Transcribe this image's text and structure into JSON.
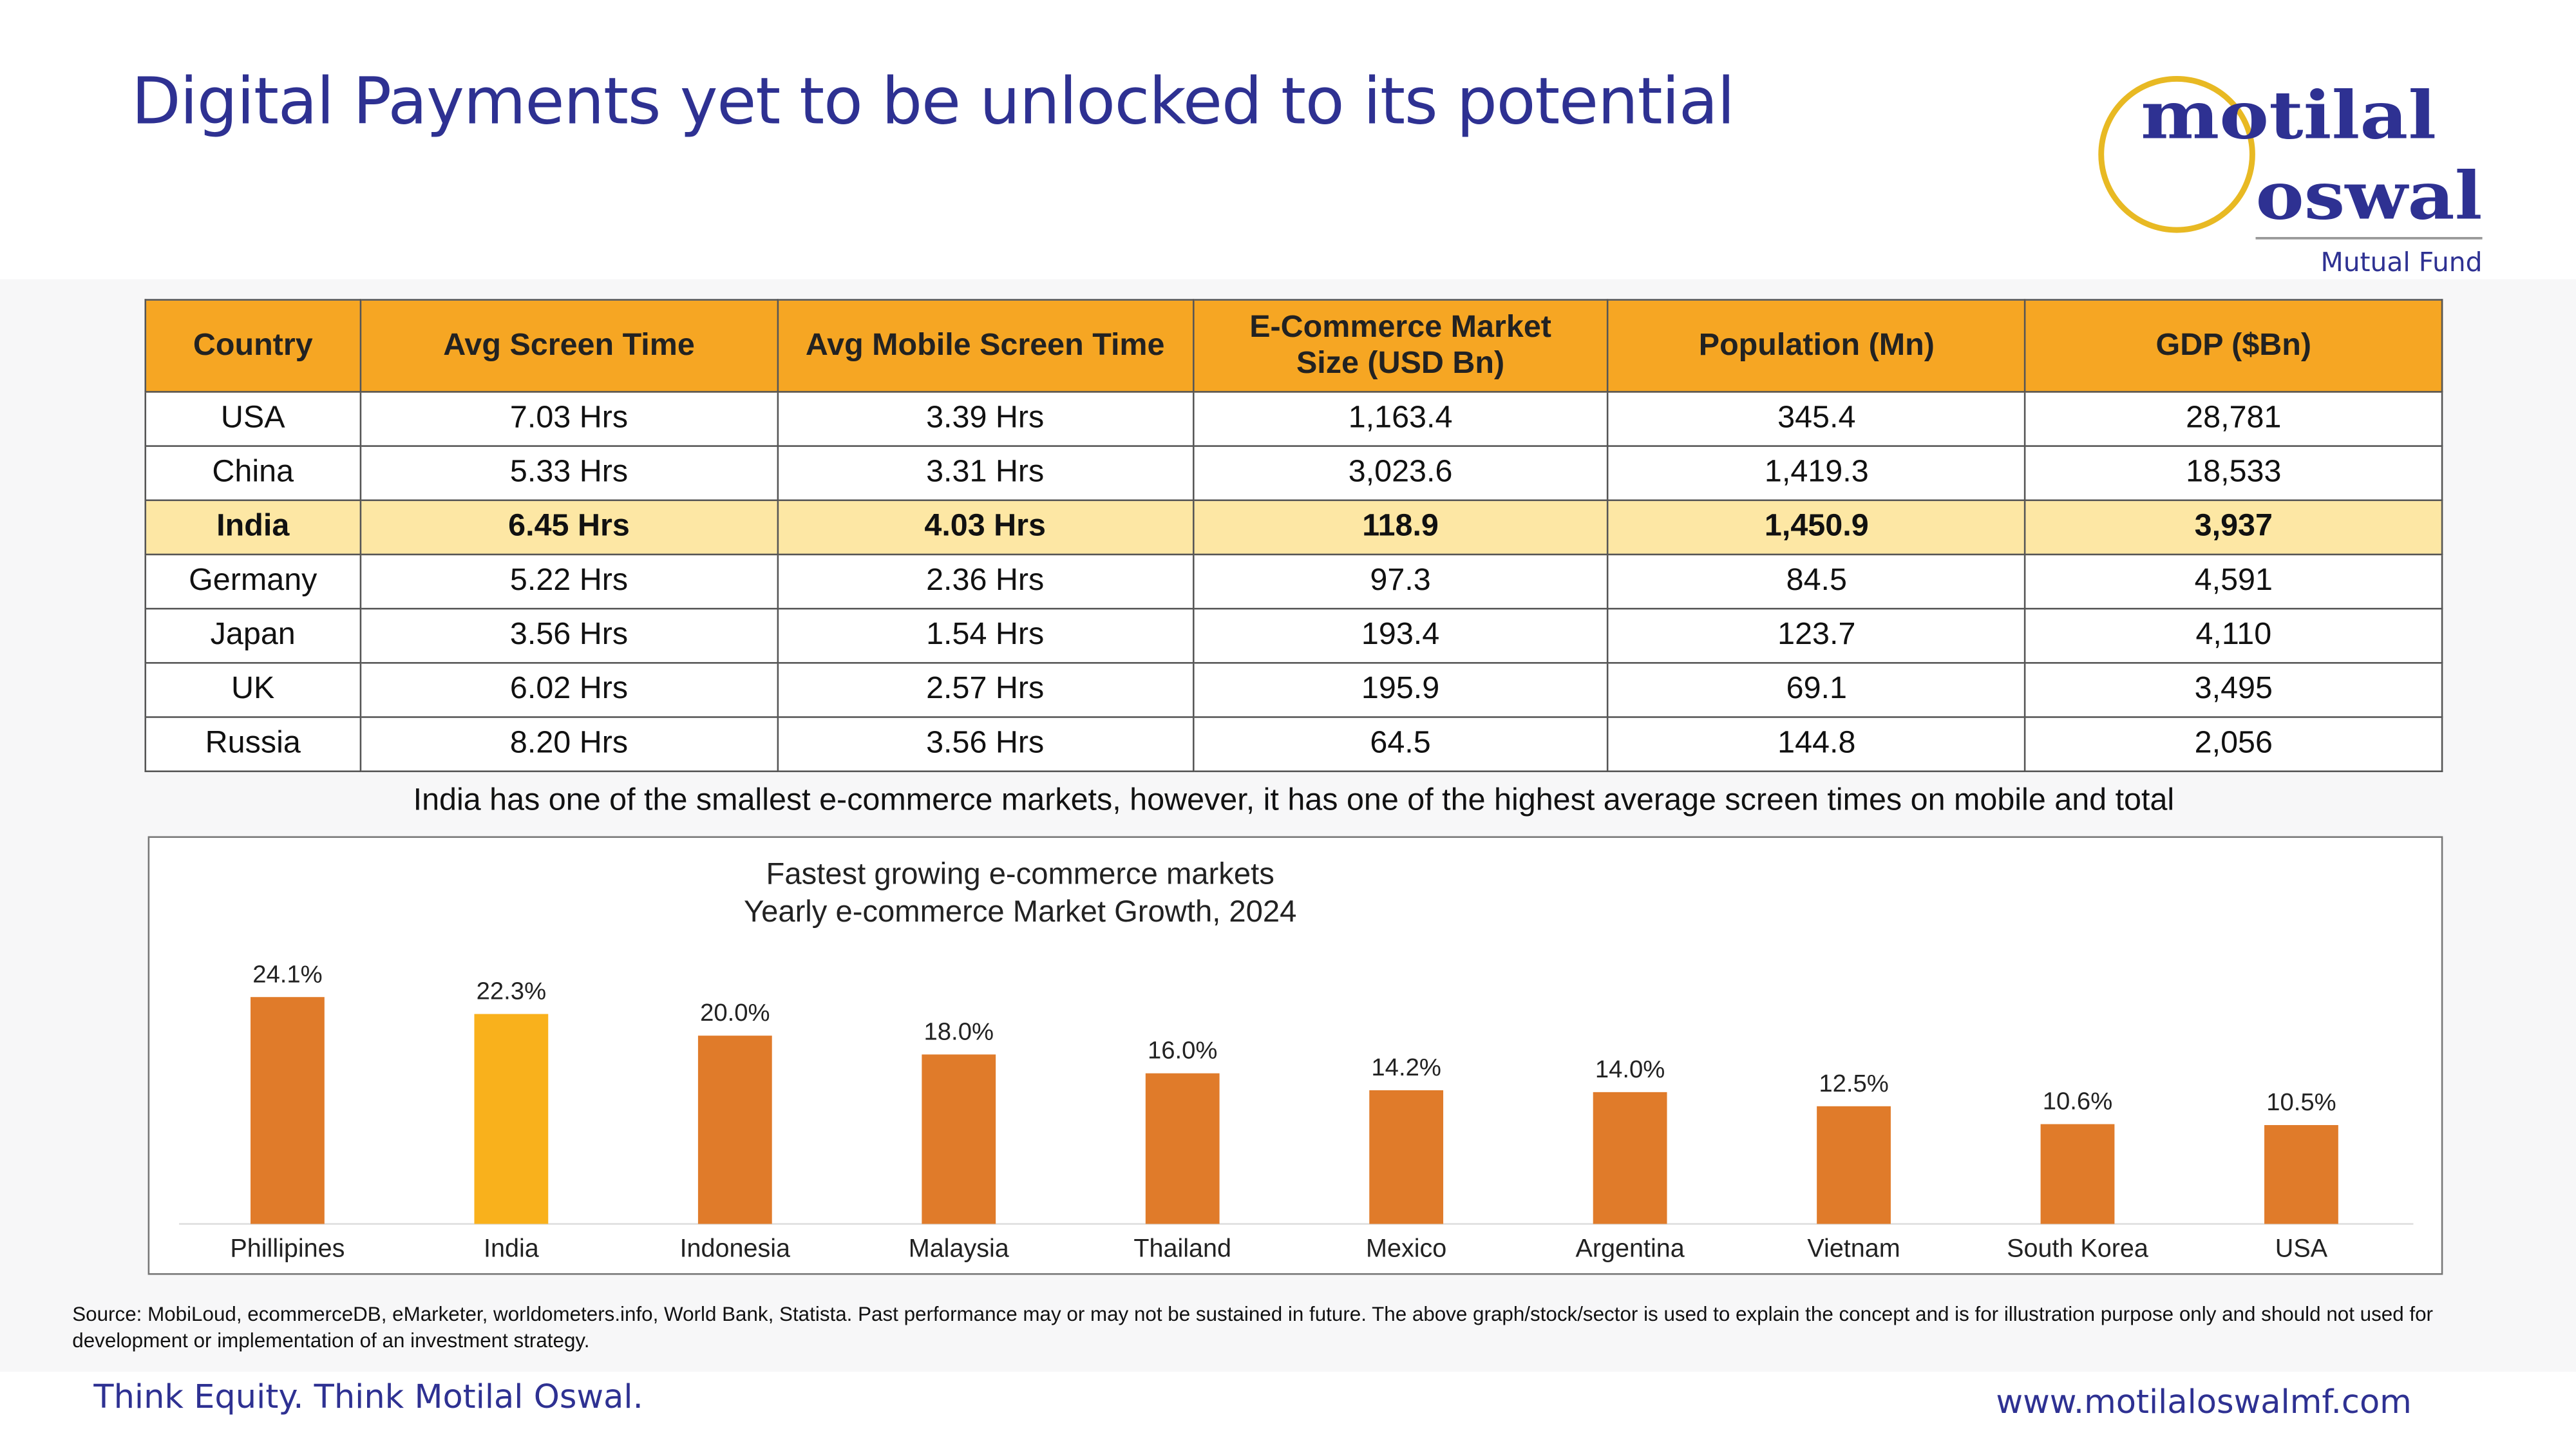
{
  "header": {
    "title": "Digital Payments yet to be unlocked to its potential"
  },
  "logo": {
    "line1": "motilal",
    "line2": "oswal",
    "sub": "Mutual Fund"
  },
  "table": {
    "columns": [
      "Country",
      "Avg Screen Time",
      "Avg Mobile Screen Time",
      "E-Commerce Market Size (USD Bn)",
      "Population (Mn)",
      "GDP ($Bn)"
    ],
    "rows": [
      [
        "USA",
        "7.03 Hrs",
        "3.39 Hrs",
        "1,163.4",
        "345.4",
        "28,781"
      ],
      [
        "China",
        "5.33 Hrs",
        "3.31 Hrs",
        "3,023.6",
        "1,419.3",
        "18,533"
      ],
      [
        "India",
        "6.45 Hrs",
        "4.03 Hrs",
        "118.9",
        "1,450.9",
        "3,937"
      ],
      [
        "Germany",
        "5.22 Hrs",
        "2.36 Hrs",
        "97.3",
        "84.5",
        "4,591"
      ],
      [
        "Japan",
        "3.56 Hrs",
        "1.54 Hrs",
        "193.4",
        "123.7",
        "4,110"
      ],
      [
        "UK",
        "6.02 Hrs",
        "2.57 Hrs",
        "195.9",
        "69.1",
        "3,495"
      ],
      [
        "Russia",
        "8.20 Hrs",
        "3.56 Hrs",
        "64.5",
        "144.8",
        "2,056"
      ]
    ],
    "highlight_row": "India"
  },
  "caption": "India has one of the smallest e-commerce markets, however, it has one of the highest average screen times on mobile and total",
  "chart_data": {
    "type": "bar",
    "title": "Fastest growing e-commerce markets",
    "subtitle": "Yearly e-commerce Market Growth, 2024",
    "categories": [
      "Phillipines",
      "India",
      "Indonesia",
      "Malaysia",
      "Thailand",
      "Mexico",
      "Argentina",
      "Vietnam",
      "South Korea",
      "USA"
    ],
    "values": [
      24.1,
      22.3,
      20.0,
      18.0,
      16.0,
      14.2,
      14.0,
      12.5,
      10.6,
      10.5
    ],
    "labels": [
      "24.1%",
      "22.3%",
      "20.0%",
      "18.0%",
      "16.0%",
      "14.2%",
      "14.0%",
      "12.5%",
      "10.6%",
      "10.5%"
    ],
    "highlight": "India",
    "ylim": [
      0,
      25
    ],
    "colors": {
      "default": "#e07b2a",
      "highlight": "#f9b11c"
    }
  },
  "source": "Source: MobiLoud, ecommerceDB, eMarketer, worldometers.info, World Bank, Statista. Past performance may or may not be sustained in future. The above graph/stock/sector is used to explain the concept and is for illustration purpose only and should not used for development or implementation of an investment strategy.",
  "footer": {
    "tagline": "Think Equity. Think Motilal Oswal.",
    "url": "www.motilaloswalmf.com"
  }
}
